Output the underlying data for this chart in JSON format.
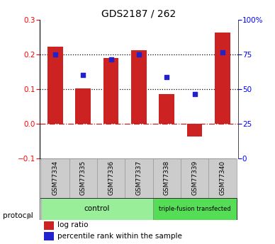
{
  "title": "GDS2187 / 262",
  "samples": [
    "GSM77334",
    "GSM77335",
    "GSM77336",
    "GSM77337",
    "GSM77338",
    "GSM77339",
    "GSM77340"
  ],
  "log_ratio": [
    0.222,
    0.101,
    0.19,
    0.212,
    0.085,
    -0.038,
    0.262
  ],
  "percentile_rank": [
    0.2,
    0.14,
    0.185,
    0.2,
    0.135,
    0.085,
    0.205
  ],
  "ylim_left": [
    -0.1,
    0.3
  ],
  "yticks_left": [
    -0.1,
    0.0,
    0.1,
    0.2,
    0.3
  ],
  "yticks_right_pct": [
    0,
    25,
    50,
    75,
    100
  ],
  "hlines": [
    0.1,
    0.2
  ],
  "bar_color": "#cc2222",
  "dot_color": "#2222cc",
  "control_color": "#99ee99",
  "transfected_color": "#55dd55",
  "sample_bg_color": "#cccccc",
  "n_control": 4,
  "n_transfected": 3,
  "control_label": "control",
  "transfected_label": "triple-fusion transfected",
  "protocol_label": "protocol",
  "legend_log_ratio": "log ratio",
  "legend_percentile": "percentile rank within the sample",
  "title_fontsize": 10,
  "tick_fontsize": 7.5,
  "sample_fontsize": 6.5,
  "legend_fontsize": 7.5,
  "protocol_fontsize": 7.5,
  "group_fontsize": 7.5
}
